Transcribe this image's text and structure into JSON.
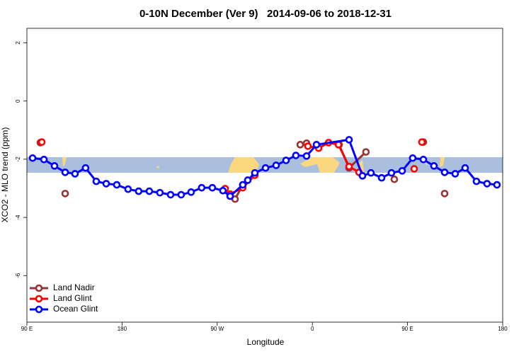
{
  "chart_data": {
    "type": "line",
    "title": "0-10N December (Ver 9)   2014-09-06 to 2018-12-31",
    "xlabel": "Longitude",
    "ylabel": "XCO2 - MLO trend (ppm)",
    "xlim": [
      90,
      540
    ],
    "ylim": [
      -7.6,
      2.5
    ],
    "xticks": [
      {
        "value": 90,
        "label": "90 E"
      },
      180,
      {
        "value": 270,
        "label": "90 W"
      },
      {
        "value": 360,
        "label": "0"
      },
      {
        "value": 450,
        "label": "90 E"
      },
      {
        "value": 540,
        "label": "180"
      }
    ],
    "yticks": [
      2,
      0,
      -2,
      -4,
      -6
    ],
    "legend": "bottom-left",
    "series": [
      {
        "name": "Land Nadir",
        "color": "#9b3232",
        "x": [
          102.7,
          null,
          126.2,
          null,
          286.9,
          294.2,
          null,
          348.5,
          354.5,
          null,
          385.3,
          394.7,
          410.7,
          null,
          437.5,
          null,
          465.0,
          null,
          485.1
        ],
        "values": [
          -1.43,
          null,
          -3.18,
          null,
          -3.37,
          -2.88,
          null,
          -1.5,
          -1.45,
          null,
          -1.5,
          -2.3,
          -1.75,
          null,
          -2.69,
          null,
          -1.41,
          null,
          -3.18
        ]
      },
      {
        "name": "Land Glint",
        "color": "#ff0000",
        "x": [
          104.1,
          null,
          277.5,
          282.2,
          294.2,
          305.6,
          null,
          355.8,
          365.9,
          375.3,
          384.7,
          394.7,
          404.1,
          null,
          456.3,
          null,
          463.6
        ],
        "values": [
          -1.41,
          null,
          -3.01,
          -3.2,
          -2.98,
          -2.55,
          null,
          -1.55,
          -1.62,
          -1.43,
          -1.5,
          -2.25,
          -2.45,
          null,
          -2.33,
          null,
          -1.41
        ]
      },
      {
        "name": "Ocean Glint",
        "color": "#0000ff",
        "x": [
          95.4,
          106.1,
          116.1,
          126.2,
          135.5,
          145.5,
          155.6,
          165.0,
          175.0,
          185.7,
          195.7,
          205.8,
          215.8,
          225.9,
          235.9,
          245.3,
          255.3,
          265.4,
          275.4,
          282.2,
          294.2,
          298.9,
          305.6,
          315.7,
          325.7,
          335.1,
          344.4,
          354.5,
          363.9,
          394.7,
          407.4,
          415.4,
          425.5,
          434.8,
          444.9,
          454.9,
          465.0,
          475.0,
          485.1,
          495.1,
          504.5,
          515.2,
          525.2,
          534.6
        ],
        "values": [
          -1.96,
          -2.01,
          -2.23,
          -2.45,
          -2.5,
          -2.3,
          -2.76,
          -2.84,
          -2.88,
          -3.03,
          -3.1,
          -3.1,
          -3.15,
          -3.22,
          -3.22,
          -3.13,
          -2.98,
          -2.98,
          -3.08,
          -3.27,
          -2.88,
          -2.72,
          -2.47,
          -2.3,
          -2.21,
          -2.04,
          -1.87,
          -1.89,
          -1.5,
          -1.33,
          -2.57,
          -2.47,
          -2.64,
          -2.47,
          -2.4,
          -1.96,
          -2.01,
          -2.23,
          -2.45,
          -2.5,
          -2.3,
          -2.76,
          -2.84,
          -2.88
        ]
      }
    ]
  }
}
